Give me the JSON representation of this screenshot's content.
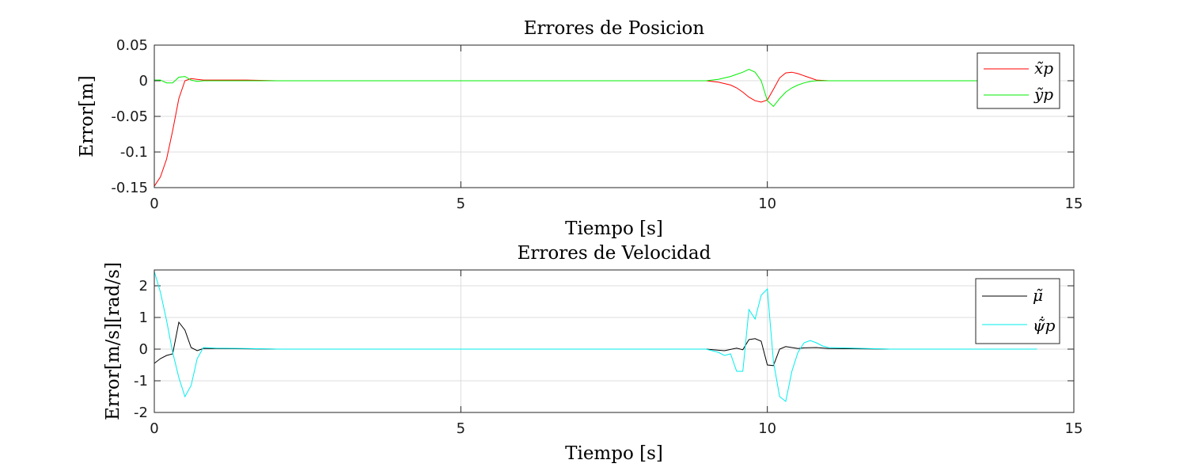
{
  "chart_data": [
    {
      "type": "line",
      "title": "Errores de Posicion",
      "xlabel": "Tiempo [s]",
      "ylabel": "Error[m]",
      "xlim": [
        0,
        15
      ],
      "ylim": [
        -0.15,
        0.05
      ],
      "xticks": [
        0,
        5,
        10,
        15
      ],
      "xtick_labels": [
        "0",
        "5",
        "10",
        "15"
      ],
      "yticks": [
        0.05,
        0,
        -0.05,
        -0.1,
        -0.15
      ],
      "ytick_labels": [
        "0.05",
        "0",
        "-0.05",
        "-0.1",
        "-0.15"
      ],
      "grid": true,
      "legend": "top-right",
      "series": [
        {
          "name": "x̃p",
          "color": "#ff0000",
          "x": [
            0,
            0.1,
            0.2,
            0.3,
            0.4,
            0.5,
            0.6,
            0.7,
            0.8,
            1.0,
            1.5,
            2,
            3,
            4,
            5,
            6,
            7,
            8,
            9.0,
            9.2,
            9.4,
            9.5,
            9.6,
            9.7,
            9.8,
            9.9,
            10.0,
            10.1,
            10.2,
            10.3,
            10.4,
            10.5,
            10.6,
            10.7,
            10.8,
            11,
            12,
            13,
            14,
            14.4
          ],
          "y": [
            -0.148,
            -0.135,
            -0.11,
            -0.07,
            -0.025,
            0,
            0.003,
            0.002,
            0.001,
            0.001,
            0.001,
            0,
            0,
            0,
            0,
            0,
            0,
            0,
            0,
            -0.002,
            -0.006,
            -0.01,
            -0.016,
            -0.023,
            -0.028,
            -0.03,
            -0.027,
            -0.012,
            0.004,
            0.011,
            0.012,
            0.01,
            0.007,
            0.004,
            0.001,
            0,
            0,
            0,
            0,
            0
          ]
        },
        {
          "name": "ỹp",
          "color": "#00ee00",
          "x": [
            0,
            0.1,
            0.2,
            0.3,
            0.4,
            0.5,
            0.6,
            0.7,
            0.8,
            1.0,
            1.5,
            2,
            3,
            4,
            5,
            6,
            7,
            8,
            9.0,
            9.2,
            9.4,
            9.5,
            9.6,
            9.7,
            9.8,
            9.9,
            10.0,
            10.1,
            10.2,
            10.3,
            10.4,
            10.5,
            10.6,
            10.7,
            10.8,
            11,
            12,
            13,
            14,
            14.4
          ],
          "y": [
            0.001,
            0.001,
            -0.003,
            -0.003,
            0.005,
            0.006,
            0.001,
            -0.001,
            0,
            0,
            0,
            0,
            0,
            0,
            0,
            0,
            0,
            0,
            0,
            0.002,
            0.006,
            0.009,
            0.012,
            0.016,
            0.012,
            0.0,
            -0.028,
            -0.036,
            -0.025,
            -0.016,
            -0.01,
            -0.006,
            -0.003,
            -0.001,
            0,
            0,
            0,
            0,
            0,
            0
          ]
        }
      ]
    },
    {
      "type": "line",
      "title": "Errores de Velocidad",
      "xlabel": "Tiempo [s]",
      "ylabel": "Error[m/s][rad/s]",
      "xlim": [
        0,
        15
      ],
      "ylim": [
        -2,
        2.5
      ],
      "xticks": [
        0,
        5,
        10,
        15
      ],
      "xtick_labels": [
        "0",
        "5",
        "10",
        "15"
      ],
      "yticks": [
        2,
        1,
        0,
        -1,
        -2
      ],
      "ytick_labels": [
        "2",
        "1",
        "0",
        "-1",
        "-2"
      ],
      "grid": true,
      "legend": "top-right",
      "series": [
        {
          "name": "μ̃",
          "color": "#000000",
          "x": [
            0,
            0.1,
            0.2,
            0.3,
            0.4,
            0.5,
            0.6,
            0.7,
            0.8,
            1.0,
            1.5,
            2,
            3,
            4,
            5,
            6,
            7,
            8,
            9.0,
            9.3,
            9.5,
            9.6,
            9.7,
            9.8,
            9.9,
            10.0,
            10.1,
            10.2,
            10.3,
            10.4,
            10.5,
            10.6,
            10.8,
            11,
            12,
            13,
            14,
            14.4
          ],
          "y": [
            -0.45,
            -0.3,
            -0.2,
            -0.15,
            0.85,
            0.6,
            0.05,
            -0.05,
            0.02,
            0.02,
            0.01,
            0,
            0,
            0,
            0,
            0,
            0,
            0,
            0,
            -0.05,
            0.03,
            -0.02,
            0.3,
            0.33,
            0.25,
            -0.5,
            -0.52,
            0.0,
            0.08,
            0.05,
            0.02,
            0.04,
            0.05,
            0.02,
            0,
            0,
            0,
            0
          ]
        },
        {
          "name": "ψ̃̇p",
          "color": "#00eeee",
          "x": [
            0,
            0.1,
            0.2,
            0.3,
            0.4,
            0.5,
            0.6,
            0.7,
            0.8,
            1.0,
            1.5,
            2,
            3,
            4,
            5,
            6,
            7,
            8,
            9.0,
            9.2,
            9.3,
            9.4,
            9.5,
            9.6,
            9.7,
            9.8,
            9.9,
            10.0,
            10.1,
            10.2,
            10.3,
            10.4,
            10.5,
            10.6,
            10.7,
            10.8,
            10.9,
            11,
            12,
            13,
            14,
            14.4
          ],
          "y": [
            2.45,
            1.8,
            0.9,
            -0.1,
            -0.9,
            -1.5,
            -1.15,
            -0.3,
            0.05,
            0.03,
            0.02,
            0,
            0,
            0,
            0,
            0,
            0,
            0,
            0,
            -0.1,
            -0.2,
            -0.15,
            -0.7,
            -0.7,
            1.25,
            0.95,
            1.7,
            1.9,
            -0.4,
            -1.5,
            -1.65,
            -0.7,
            -0.1,
            0.2,
            0.27,
            0.2,
            0.1,
            0.05,
            0,
            0,
            0,
            0
          ]
        }
      ]
    }
  ]
}
